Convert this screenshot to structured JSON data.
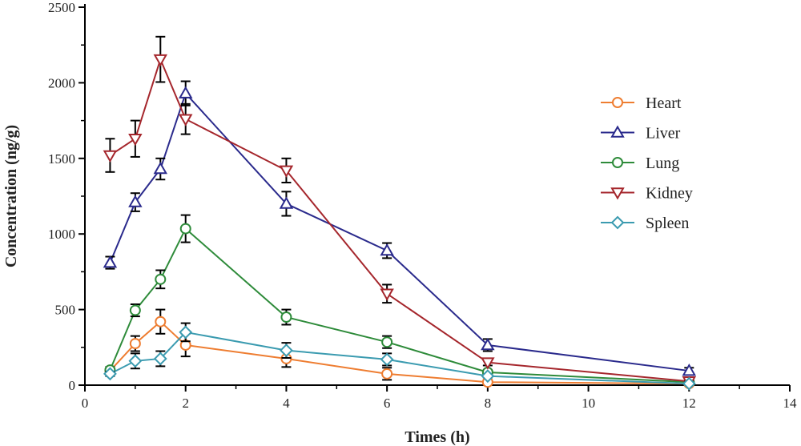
{
  "chart_data": {
    "type": "line",
    "xlabel": "Times (h)",
    "ylabel": "Concentration (ng/g)",
    "xlim": [
      0,
      14
    ],
    "ylim": [
      0,
      2500
    ],
    "x_ticks": [
      0,
      2,
      4,
      6,
      8,
      10,
      12,
      14
    ],
    "y_ticks": [
      0,
      500,
      1000,
      1500,
      2000,
      2500
    ],
    "grid": false,
    "legend_position": "right",
    "series": [
      {
        "name": "Heart",
        "color": "#ee7d31",
        "marker": "circle",
        "x": [
          0.5,
          1,
          1.5,
          2,
          4,
          6,
          8,
          12
        ],
        "y": [
          95,
          275,
          420,
          265,
          175,
          75,
          20,
          10
        ],
        "err": [
          15,
          50,
          80,
          75,
          55,
          40,
          10,
          5
        ]
      },
      {
        "name": "Liver",
        "color": "#2a2a8c",
        "marker": "triangle-up",
        "x": [
          0.5,
          1,
          1.5,
          2,
          4,
          6,
          8,
          12
        ],
        "y": [
          810,
          1210,
          1430,
          1930,
          1200,
          890,
          265,
          95
        ],
        "err": [
          40,
          60,
          70,
          80,
          80,
          50,
          40,
          20
        ]
      },
      {
        "name": "Lung",
        "color": "#2e8b3a",
        "marker": "circle",
        "x": [
          0.5,
          1,
          1.5,
          2,
          4,
          6,
          8,
          12
        ],
        "y": [
          100,
          495,
          700,
          1035,
          450,
          285,
          85,
          20
        ],
        "err": [
          20,
          40,
          60,
          90,
          50,
          40,
          15,
          5
        ]
      },
      {
        "name": "Kidney",
        "color": "#a5262c",
        "marker": "triangle-down",
        "x": [
          0.5,
          1,
          1.5,
          2,
          4,
          6,
          8,
          12
        ],
        "y": [
          1520,
          1630,
          2155,
          1760,
          1420,
          605,
          150,
          25
        ],
        "err": [
          110,
          120,
          150,
          100,
          80,
          60,
          20,
          5
        ]
      },
      {
        "name": "Spleen",
        "color": "#3b9bb0",
        "marker": "diamond",
        "x": [
          0.5,
          1,
          1.5,
          2,
          4,
          6,
          8,
          12
        ],
        "y": [
          75,
          160,
          175,
          350,
          230,
          170,
          60,
          10
        ],
        "err": [
          15,
          50,
          50,
          60,
          50,
          40,
          10,
          5
        ]
      }
    ]
  }
}
